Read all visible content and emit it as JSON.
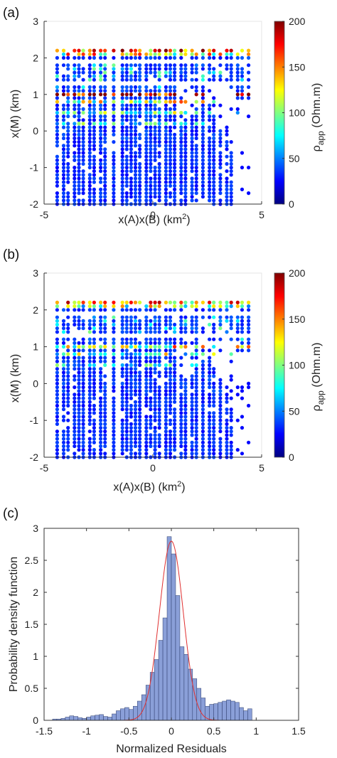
{
  "panels": [
    {
      "id": "a",
      "label": "(a)",
      "chart_data": {
        "type": "scatter",
        "xlabel": "x(A)x(B) (km",
        "xlabel_sup": "2",
        "xlabel_tail": ")",
        "ylabel": "x(M) (km)",
        "xlim": [
          -5,
          5
        ],
        "ylim": [
          -2,
          3
        ],
        "xticks": [
          -5,
          0,
          5
        ],
        "yticks": [
          -2,
          -1,
          0,
          1,
          2,
          3
        ],
        "xticklabels": [
          "-5",
          "0",
          "5"
        ],
        "yticklabels": [
          "-2",
          "-1",
          "0",
          "1",
          "2",
          "3"
        ],
        "grid": false,
        "colorbar": {
          "label": "ρ",
          "label_sub": "app",
          "label_tail": " (Ohm.m)",
          "range": [
            0,
            200
          ],
          "ticks": [
            0,
            50,
            100,
            150,
            200
          ],
          "ticklabels": [
            "0",
            "50",
            "100",
            "150",
            "200"
          ],
          "colormap": "jet"
        },
        "point_columns": [
          -4.4,
          -4.1,
          -3.9,
          -3.6,
          -3.4,
          -3.2,
          -2.9,
          -2.7,
          -2.4,
          -2.2,
          -1.8,
          -1.4,
          -1.2,
          -1.0,
          -0.8,
          -0.6,
          -0.3,
          -0.1,
          0.1,
          0.3,
          0.6,
          0.8,
          1.0,
          1.3,
          1.5,
          1.8,
          2.0,
          2.3,
          2.6,
          2.8,
          3.1,
          3.4,
          3.6,
          3.9,
          4.1,
          4.4
        ],
        "point_rows": [
          2.2,
          2.1,
          2.0,
          1.8,
          1.7,
          1.6,
          1.5,
          1.4,
          1.2,
          1.1,
          1.0,
          0.9,
          0.8,
          0.7,
          0.6,
          0.5,
          0.4,
          0.3,
          0.2,
          0.1,
          0.0,
          -0.1,
          -0.2,
          -0.3,
          -0.4,
          -0.5,
          -0.6,
          -0.7,
          -0.8,
          -0.9,
          -1.0,
          -1.1,
          -1.2,
          -1.3,
          -1.4,
          -1.5,
          -1.6,
          -1.7,
          -1.8,
          -1.9,
          -2.0
        ],
        "value_model": {
          "background": 25,
          "high_rows": [
            {
              "y": 2.2,
              "value": 150
            },
            {
              "y": 2.1,
              "value": 120
            },
            {
              "y": 1.0,
              "value": 190
            },
            {
              "y": 0.8,
              "value": 110
            },
            {
              "y": 0.5,
              "value": 80
            },
            {
              "y": 0.2,
              "value": 60
            }
          ]
        }
      }
    },
    {
      "id": "b",
      "label": "(b)",
      "chart_data": {
        "type": "scatter",
        "xlabel": "x(A)x(B) (km",
        "xlabel_sup": "2",
        "xlabel_tail": ")",
        "ylabel": "x(M) (km)",
        "xlim": [
          -5,
          5
        ],
        "ylim": [
          -2,
          3
        ],
        "xticks": [
          -5,
          0,
          5
        ],
        "yticks": [
          -2,
          -1,
          0,
          1,
          2,
          3
        ],
        "xticklabels": [
          "-5",
          "0",
          "5"
        ],
        "yticklabels": [
          "-2",
          "-1",
          "0",
          "1",
          "2",
          "3"
        ],
        "grid": false,
        "colorbar": {
          "label": "ρ",
          "label_sub": "app",
          "label_tail": " (Ohm.m)",
          "range": [
            0,
            200
          ],
          "ticks": [
            0,
            50,
            100,
            150,
            200
          ],
          "ticklabels": [
            "0",
            "50",
            "100",
            "150",
            "200"
          ],
          "colormap": "jet"
        },
        "point_columns": [
          -4.4,
          -4.1,
          -3.9,
          -3.6,
          -3.4,
          -3.2,
          -2.9,
          -2.7,
          -2.4,
          -2.2,
          -1.8,
          -1.4,
          -1.2,
          -1.0,
          -0.8,
          -0.6,
          -0.3,
          -0.1,
          0.1,
          0.3,
          0.6,
          0.8,
          1.0,
          1.3,
          1.5,
          1.8,
          2.0,
          2.3,
          2.6,
          2.8,
          3.1,
          3.4,
          3.6,
          3.9,
          4.1,
          4.4
        ],
        "point_rows": [
          2.2,
          2.1,
          2.0,
          1.8,
          1.7,
          1.6,
          1.5,
          1.4,
          1.2,
          1.1,
          1.0,
          0.9,
          0.8,
          0.7,
          0.6,
          0.5,
          0.4,
          0.3,
          0.2,
          0.1,
          0.0,
          -0.1,
          -0.2,
          -0.3,
          -0.4,
          -0.5,
          -0.6,
          -0.7,
          -0.8,
          -0.9,
          -1.0,
          -1.1,
          -1.2,
          -1.3,
          -1.4,
          -1.5,
          -1.6,
          -1.7,
          -1.8,
          -1.9,
          -2.0
        ],
        "value_model": {
          "background": 25,
          "high_rows": [
            {
              "y": 2.2,
              "value": 140
            },
            {
              "y": 2.1,
              "value": 100
            },
            {
              "y": 1.0,
              "value": 120
            },
            {
              "y": 0.8,
              "value": 90
            },
            {
              "y": 0.5,
              "value": 50
            }
          ]
        }
      }
    },
    {
      "id": "c",
      "label": "(c)",
      "chart_data": {
        "type": "bar",
        "subtype": "histogram",
        "xlabel": "Normalized Residuals",
        "ylabel": "Probability density function",
        "xlim": [
          -1.5,
          1.5
        ],
        "ylim": [
          0,
          3
        ],
        "xticks": [
          -1.5,
          -1,
          -0.5,
          0,
          0.5,
          1,
          1.5
        ],
        "xticklabels": [
          "-1.5",
          "-1",
          "-0.5",
          "0",
          "0.5",
          "1",
          "1.5"
        ],
        "yticks": [
          0,
          0.5,
          1,
          1.5,
          2,
          2.5,
          3
        ],
        "yticklabels": [
          "0",
          "0.5",
          "1",
          "1.5",
          "2",
          "2.5",
          "3"
        ],
        "bin_width": 0.05,
        "bin_left_edges": [
          -1.4,
          -1.35,
          -1.3,
          -1.25,
          -1.2,
          -1.15,
          -1.1,
          -1.05,
          -1.0,
          -0.95,
          -0.9,
          -0.85,
          -0.8,
          -0.75,
          -0.7,
          -0.65,
          -0.6,
          -0.55,
          -0.5,
          -0.45,
          -0.4,
          -0.35,
          -0.3,
          -0.25,
          -0.2,
          -0.15,
          -0.1,
          -0.05,
          0.0,
          0.05,
          0.1,
          0.15,
          0.2,
          0.25,
          0.3,
          0.35,
          0.4,
          0.45,
          0.5,
          0.55,
          0.6,
          0.65,
          0.7,
          0.75,
          0.8,
          0.85,
          0.9
        ],
        "density": [
          0.02,
          0.02,
          0.03,
          0.05,
          0.07,
          0.06,
          0.04,
          0.03,
          0.05,
          0.07,
          0.08,
          0.09,
          0.06,
          0.05,
          0.1,
          0.15,
          0.18,
          0.2,
          0.17,
          0.22,
          0.3,
          0.4,
          0.55,
          0.75,
          0.95,
          1.25,
          1.6,
          2.87,
          2.6,
          1.95,
          1.15,
          1.03,
          0.8,
          0.65,
          0.5,
          0.35,
          0.22,
          0.25,
          0.26,
          0.28,
          0.3,
          0.32,
          0.3,
          0.28,
          0.2,
          0.15,
          0.18
        ],
        "bar_color": "#8a9fd8",
        "bar_edge": "#2b3a6b",
        "fit_curve": {
          "type": "gaussian",
          "mean": 0.0,
          "sigma": 0.14,
          "peak": 2.8,
          "color": "#e03030"
        }
      }
    }
  ]
}
